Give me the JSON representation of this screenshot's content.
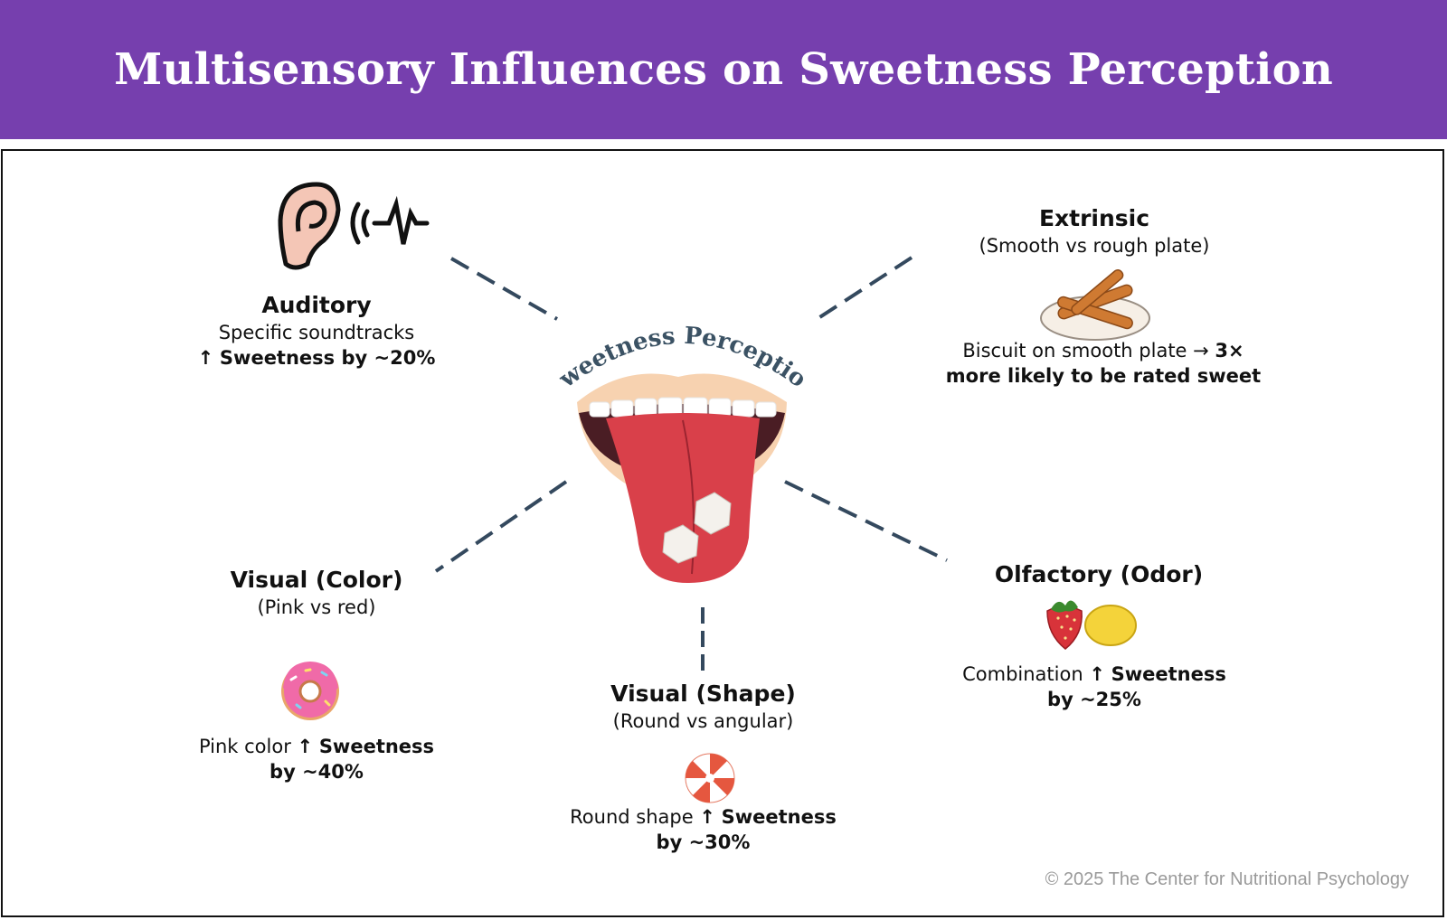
{
  "header": {
    "title": "Multisensory Influences on Sweetness Perception"
  },
  "center": {
    "label": "Sweetness Perception"
  },
  "auditory": {
    "title": "Auditory",
    "subtitle": "Specific soundtracks",
    "effect_arrow": "↑",
    "effect": "Sweetness by ~20%"
  },
  "extrinsic": {
    "title": "Extrinsic",
    "subtitle": "(Smooth vs rough plate)",
    "desc_pre": "Biscuit on smooth plate → ",
    "desc_bold_1": "3×",
    "desc_bold_2": "more likely to be rated sweet"
  },
  "visual_color": {
    "title": "Visual (Color)",
    "subtitle": "(Pink vs red)",
    "desc_pre": "Pink color ",
    "desc_arrow": "↑",
    "desc_bold_1": "Sweetness",
    "desc_bold_2": "by ~40%"
  },
  "visual_shape": {
    "title": "Visual (Shape)",
    "subtitle": "(Round vs angular)",
    "desc_pre": "Round shape ",
    "desc_arrow": "↑",
    "desc_bold_1": "Sweetness",
    "desc_bold_2": "by ~30%"
  },
  "olfactory": {
    "title": "Olfactory (Odor)",
    "desc_pre": "Combination ",
    "desc_arrow": "↑",
    "desc_bold_1": "Sweetness",
    "desc_bold_2": "by ~25%"
  },
  "footer": {
    "copyright": "© 2025 The Center for Nutritional Psychology"
  },
  "colors": {
    "header_bg": "#763fae",
    "connector": "#34495e",
    "tongue": "#d9404a",
    "skin": "#f7d2b0"
  }
}
